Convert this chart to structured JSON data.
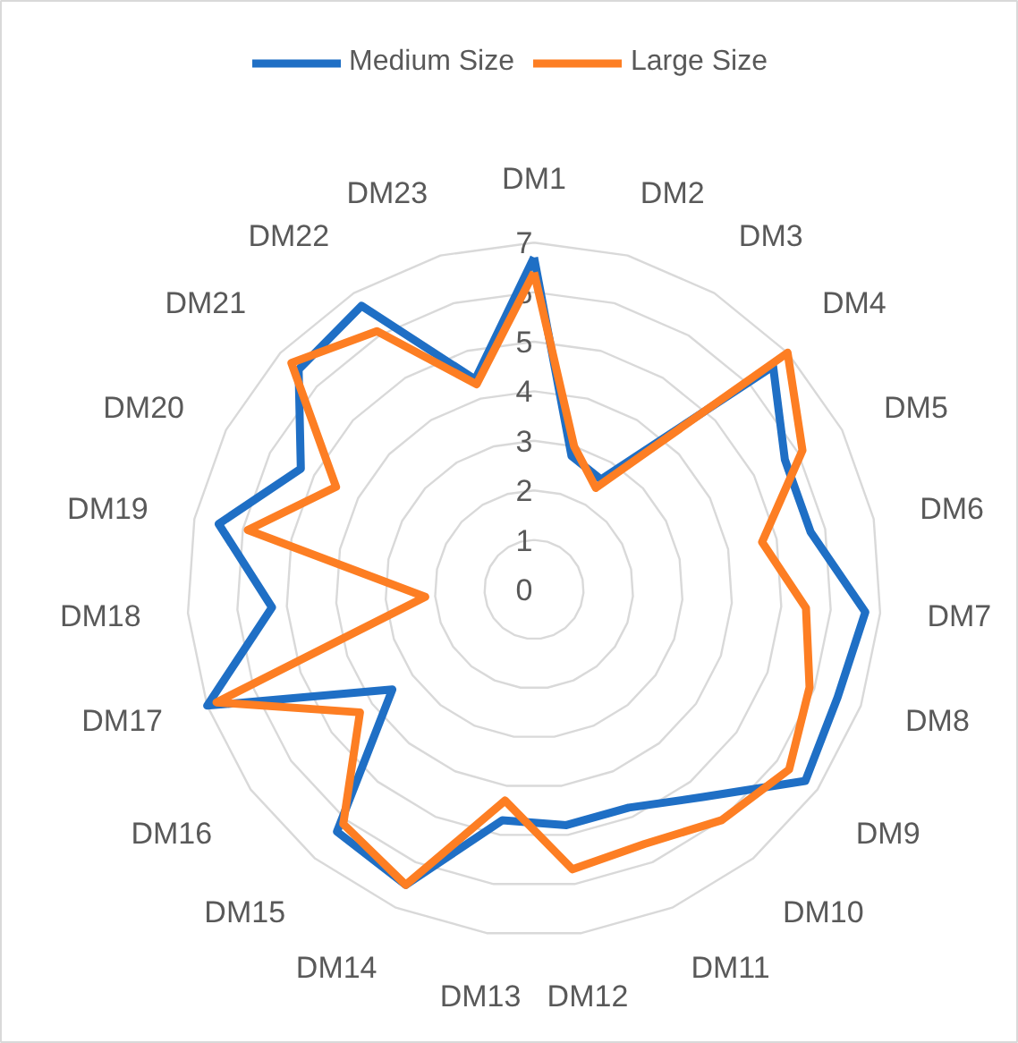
{
  "chart_data": {
    "type": "radar",
    "categories": [
      "DM1",
      "DM2",
      "DM3",
      "DM4",
      "DM5",
      "DM6",
      "DM7",
      "DM8",
      "DM9",
      "DM10",
      "DM11",
      "DM12",
      "DM13",
      "DM14",
      "DM15",
      "DM16",
      "DM17",
      "DM18",
      "DM19",
      "DM20",
      "DM21",
      "DM22",
      "DM23"
    ],
    "series": [
      {
        "name": "Medium Size",
        "color": "#1f6fc5",
        "values": [
          6.7,
          2.8,
          2.6,
          6.6,
          5.7,
          5.7,
          6.7,
          6.5,
          6.7,
          5.4,
          4.8,
          4.8,
          4.7,
          6.5,
          6.3,
          3.5,
          7.0,
          5.3,
          6.5,
          5.3,
          6.5,
          6.7,
          4.4
        ]
      },
      {
        "name": "Large Size",
        "color": "#fd7e23",
        "values": [
          6.4,
          3.0,
          2.4,
          7.0,
          6.1,
          4.7,
          5.5,
          5.9,
          6.3,
          6.0,
          5.6,
          5.7,
          4.3,
          6.5,
          6.1,
          4.3,
          6.8,
          2.2,
          5.9,
          4.5,
          6.7,
          6.1,
          4.3
        ]
      }
    ],
    "ylim": [
      0,
      7
    ],
    "yticks": [
      0,
      1,
      2,
      3,
      4,
      5,
      6,
      7
    ],
    "grid": true,
    "legend": "top",
    "marker": "none",
    "line_style": "solid"
  }
}
